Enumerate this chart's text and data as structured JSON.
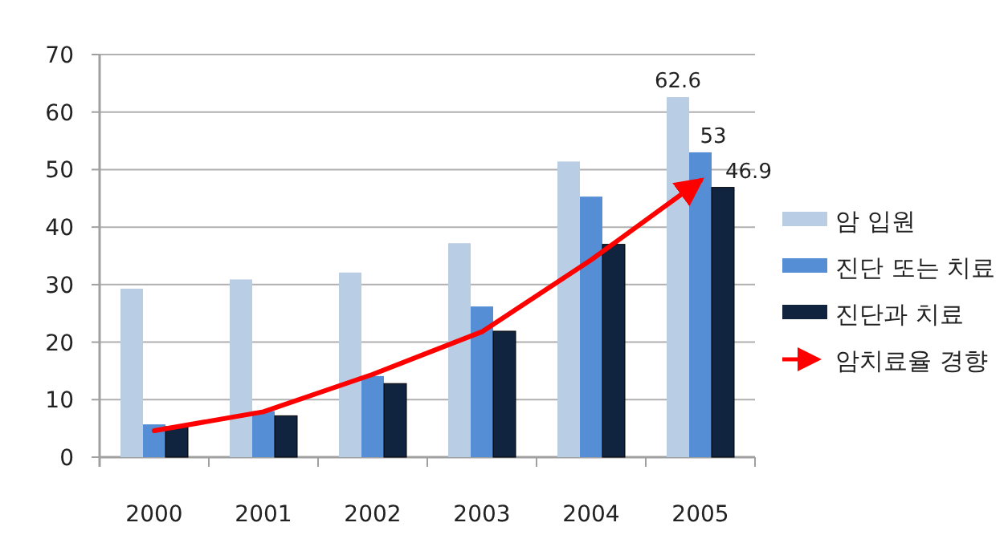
{
  "chart_data": {
    "type": "bar",
    "categories": [
      "2000",
      "2001",
      "2002",
      "2003",
      "2004",
      "2005"
    ],
    "series": [
      {
        "name": "암 입원",
        "color": "#b9cde5",
        "values": [
          29.3,
          30.9,
          32.1,
          37.2,
          51.4,
          62.6
        ],
        "value_labels": [
          null,
          null,
          null,
          null,
          null,
          "62.6"
        ]
      },
      {
        "name": "진단 또는 치료",
        "color": "#558ed5",
        "values": [
          5.7,
          8.0,
          14.1,
          26.2,
          45.3,
          53
        ],
        "value_labels": [
          null,
          null,
          null,
          null,
          null,
          "53"
        ]
      },
      {
        "name": "진단과 치료",
        "color": "#10243f",
        "values": [
          5.3,
          7.2,
          12.8,
          21.9,
          37.0,
          46.9
        ],
        "value_labels": [
          null,
          null,
          null,
          null,
          null,
          "46.9"
        ]
      },
      {
        "name": "암치료율 경향",
        "type": "line",
        "color": "#ff0000",
        "values": [
          4.6,
          7.9,
          14.4,
          21.8,
          34.3,
          48.1
        ]
      }
    ],
    "ylim": [
      0,
      70
    ],
    "yticks": [
      0,
      10,
      20,
      30,
      40,
      50,
      60,
      70
    ],
    "grid": "y",
    "legend": "right"
  }
}
